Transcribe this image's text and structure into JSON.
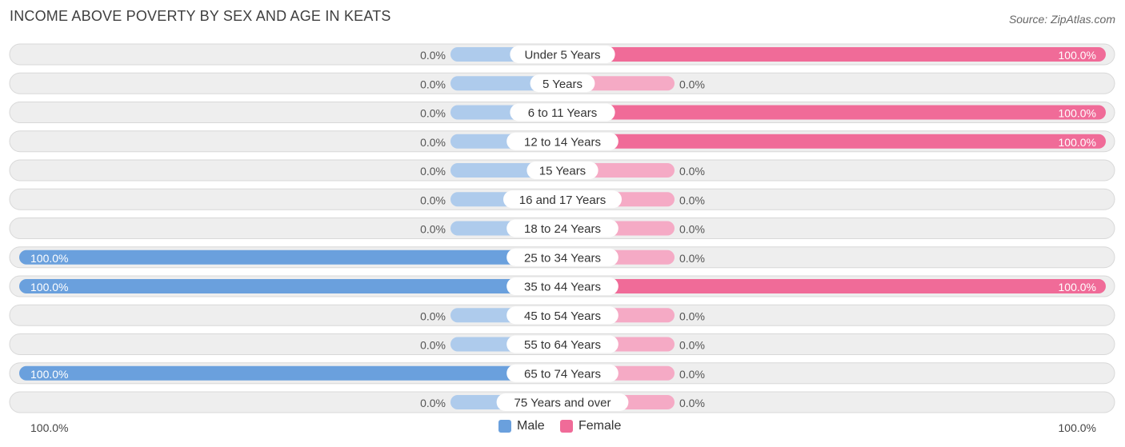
{
  "header": {
    "title": "INCOME ABOVE POVERTY BY SEX AND AGE IN KEATS",
    "source": "Source: ZipAtlas.com"
  },
  "colors": {
    "male_full": "#6aa0dd",
    "male_light": "#aecbec",
    "female_full": "#f06b98",
    "female_light": "#f5aac5",
    "row_bg": "#eeeeee",
    "row_border": "#d8d8d8"
  },
  "chart_data": {
    "type": "bar",
    "orientation": "horizontal-diverging",
    "categories": [
      "Under 5 Years",
      "5 Years",
      "6 to 11 Years",
      "12 to 14 Years",
      "15 Years",
      "16 and 17 Years",
      "18 to 24 Years",
      "25 to 34 Years",
      "35 to 44 Years",
      "45 to 54 Years",
      "55 to 64 Years",
      "65 to 74 Years",
      "75 Years and over"
    ],
    "series": [
      {
        "name": "Male",
        "values": [
          0,
          0,
          0,
          0,
          0,
          0,
          0,
          100,
          100,
          0,
          0,
          100,
          0
        ],
        "labels": [
          "0.0%",
          "0.0%",
          "0.0%",
          "0.0%",
          "0.0%",
          "0.0%",
          "0.0%",
          "100.0%",
          "100.0%",
          "0.0%",
          "0.0%",
          "100.0%",
          "0.0%"
        ]
      },
      {
        "name": "Female",
        "values": [
          100,
          0,
          100,
          100,
          0,
          0,
          0,
          0,
          100,
          0,
          0,
          0,
          0
        ],
        "labels": [
          "100.0%",
          "0.0%",
          "100.0%",
          "100.0%",
          "0.0%",
          "0.0%",
          "0.0%",
          "0.0%",
          "100.0%",
          "0.0%",
          "0.0%",
          "0.0%",
          "0.0%"
        ]
      }
    ],
    "xlim": [
      0,
      100
    ],
    "axis_left_label": "100.0%",
    "axis_right_label": "100.0%",
    "legend_position": "bottom-center"
  }
}
